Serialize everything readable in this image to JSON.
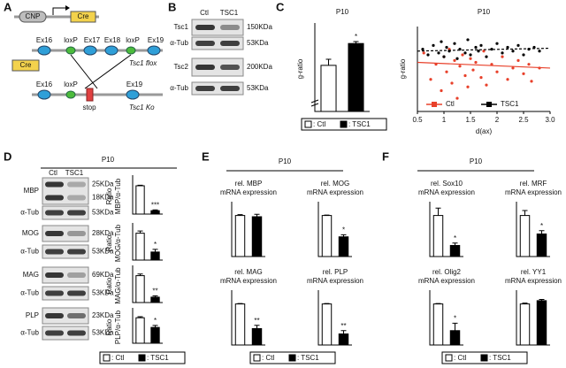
{
  "panel_labels": [
    "A",
    "B",
    "C",
    "D",
    "E",
    "F"
  ],
  "construct": {
    "promoter": "CNP",
    "cre": "Cre",
    "flox": {
      "exons": [
        "Ex16",
        "Ex17",
        "Ex18",
        "Ex19"
      ],
      "loxp": [
        "loxP",
        "loxP"
      ],
      "label": "Tsc1 flox"
    },
    "cre_box": "Cre",
    "ko": {
      "exons": [
        "Ex16",
        "Ex19"
      ],
      "loxp": "loxP",
      "stop": "stop",
      "label": "Tsc1 Ko"
    }
  },
  "blot_b": {
    "columns": [
      "Ctl",
      "TSC1"
    ],
    "rows": [
      {
        "protein": "Tsc1",
        "size": "150KDa"
      },
      {
        "protein": "α-Tub",
        "size": "53KDa"
      },
      {
        "protein": "Tsc2",
        "size": "200KDa"
      },
      {
        "protein": "α-Tub",
        "size": "53KDa"
      }
    ]
  },
  "blot_d": {
    "title": "P10",
    "columns": [
      "Ctl",
      "TSC1"
    ],
    "rows": [
      {
        "protein": "MBP",
        "sizes": [
          "25KDa",
          "18KDa"
        ]
      },
      {
        "protein": "α-Tub",
        "sizes": [
          "53KDa"
        ]
      },
      {
        "protein": "MOG",
        "sizes": [
          "28KDa"
        ]
      },
      {
        "protein": "α-Tub",
        "sizes": [
          "53KDa"
        ]
      },
      {
        "protein": "MAG",
        "sizes": [
          "69KDa"
        ]
      },
      {
        "protein": "α-Tub",
        "sizes": [
          "53KDa"
        ]
      },
      {
        "protein": "PLP",
        "sizes": [
          "23KDa"
        ]
      },
      {
        "protein": "α-Tub",
        "sizes": [
          "53KDa"
        ]
      }
    ]
  },
  "panel_titles": {
    "e": "P10",
    "f": "P10"
  },
  "legends": [
    {
      "items": [
        {
          "label": ": Ctl",
          "color": "#ffffff"
        },
        {
          "label": ": TSC1",
          "color": "#000000"
        }
      ]
    },
    {
      "items": [
        {
          "label": ": Ctl",
          "color": "#ffffff"
        },
        {
          "label": ": TSC1",
          "color": "#000000"
        }
      ]
    },
    {
      "items": [
        {
          "label": ": Ctl",
          "color": "#ffffff"
        },
        {
          "label": ": TSC1",
          "color": "#000000"
        }
      ]
    },
    {
      "items": [
        {
          "label": ": Ctl",
          "color": "#ffffff"
        },
        {
          "label": ": TSC1",
          "color": "#000000"
        }
      ]
    }
  ],
  "chart_data": [
    {
      "type": "bar",
      "title": [
        "P10"
      ],
      "ylabel": [
        "g-ratio"
      ],
      "values": [
        0.79,
        0.88
      ],
      "errors": [
        0.025,
        0.008
      ],
      "colors": [
        "#ffffff",
        "#000000"
      ],
      "ylim": [
        0.6,
        0.95
      ],
      "significance": "*"
    },
    {
      "type": "scatter",
      "title": [
        "P10"
      ],
      "ylabel": [
        "g-ratio"
      ],
      "xlabel": "d(ax)",
      "xlim": [
        0.5,
        3.0
      ],
      "ylim": [
        0.55,
        1.0
      ],
      "xticks": [
        0.5,
        1,
        1.5,
        2,
        2.5,
        {
          "value": 3,
          "label": "3.0"
        }
      ],
      "series": [
        {
          "name": "Ctl",
          "color": "#e8402a",
          "x": [
            0.62,
            0.75,
            0.85,
            0.95,
            1.0,
            1.05,
            1.1,
            1.15,
            1.2,
            1.25,
            1.3,
            1.35,
            1.4,
            1.45,
            1.5,
            1.55,
            1.6,
            1.7,
            1.75,
            1.8,
            1.9,
            2.0,
            2.1,
            2.2,
            2.3,
            2.4,
            2.5,
            2.6,
            2.65,
            2.8
          ],
          "values": [
            0.86,
            0.72,
            0.8,
            0.66,
            0.84,
            0.76,
            0.88,
            0.7,
            0.82,
            0.62,
            0.79,
            0.85,
            0.74,
            0.68,
            0.83,
            0.77,
            0.81,
            0.73,
            0.87,
            0.69,
            0.8,
            0.76,
            0.84,
            0.72,
            0.78,
            0.82,
            0.75,
            0.8,
            0.71,
            0.78
          ],
          "fit": {
            "x": [
              0.5,
              3.0
            ],
            "y": [
              0.81,
              0.78
            ]
          }
        },
        {
          "name": "TSC1",
          "color": "#000000",
          "x": [
            0.6,
            0.7,
            0.8,
            0.9,
            0.95,
            1.0,
            1.05,
            1.1,
            1.2,
            1.25,
            1.3,
            1.4,
            1.45,
            1.5,
            1.6,
            1.65,
            1.7,
            1.8,
            1.9,
            2.0,
            2.1,
            2.2,
            2.3,
            2.4,
            2.5,
            2.6,
            2.7,
            2.8
          ],
          "values": [
            0.88,
            0.85,
            0.9,
            0.86,
            0.92,
            0.84,
            0.89,
            0.87,
            0.91,
            0.83,
            0.88,
            0.86,
            0.93,
            0.85,
            0.89,
            0.87,
            0.9,
            0.84,
            0.88,
            0.91,
            0.86,
            0.89,
            0.87,
            0.9,
            0.85,
            0.88,
            0.89,
            0.87
          ],
          "fit": {
            "x": [
              0.5,
              3.0
            ],
            "y": [
              0.87,
              0.885
            ]
          }
        }
      ]
    },
    {
      "type": "bar",
      "ylabel": [
        "Ratio",
        "MBP/α-Tub"
      ],
      "values": [
        1.0,
        0.12
      ],
      "errors": [
        0.02,
        0.03
      ],
      "colors": [
        "#ffffff",
        "#000000"
      ],
      "ylim": [
        0,
        1.25
      ],
      "significance": "***"
    },
    {
      "type": "bar",
      "ylabel": [
        "Ratio",
        "MOG/α-Tub"
      ],
      "values": [
        1.0,
        0.3
      ],
      "errors": [
        0.08,
        0.1
      ],
      "colors": [
        "#ffffff",
        "#000000"
      ],
      "ylim": [
        0,
        1.25
      ],
      "significance": "*"
    },
    {
      "type": "bar",
      "ylabel": [
        "Ratio",
        "MAG/α-Tub"
      ],
      "values": [
        1.0,
        0.2
      ],
      "errors": [
        0.06,
        0.05
      ],
      "colors": [
        "#ffffff",
        "#000000"
      ],
      "ylim": [
        0,
        1.25
      ],
      "significance": "**"
    },
    {
      "type": "bar",
      "ylabel": [
        "Ratio",
        "PLP/α-Tub"
      ],
      "values": [
        1.0,
        0.62
      ],
      "errors": [
        0.04,
        0.08
      ],
      "colors": [
        "#ffffff",
        "#000000"
      ],
      "ylim": [
        0,
        1.25
      ],
      "significance": "*"
    },
    {
      "type": "bar",
      "title": [
        "rel. MBP",
        "mRNA expression"
      ],
      "values": [
        1.0,
        0.97
      ],
      "errors": [
        0.02,
        0.06
      ],
      "colors": [
        "#ffffff",
        "#000000"
      ],
      "ylim": [
        0,
        1.25
      ]
    },
    {
      "type": "bar",
      "title": [
        "rel. MOG",
        "mRNA expression"
      ],
      "values": [
        1.0,
        0.48
      ],
      "errors": [
        0.01,
        0.05
      ],
      "colors": [
        "#ffffff",
        "#000000"
      ],
      "ylim": [
        0,
        1.25
      ],
      "significance": "*"
    },
    {
      "type": "bar",
      "title": [
        "rel. MAG",
        "mRNA expression"
      ],
      "values": [
        1.0,
        0.4
      ],
      "errors": [
        0.01,
        0.08
      ],
      "colors": [
        "#ffffff",
        "#000000"
      ],
      "ylim": [
        0,
        1.25
      ],
      "significance": "**"
    },
    {
      "type": "bar",
      "title": [
        "rel. PLP",
        "mRNA expression"
      ],
      "values": [
        1.0,
        0.27
      ],
      "errors": [
        0.01,
        0.08
      ],
      "colors": [
        "#ffffff",
        "#000000"
      ],
      "ylim": [
        0,
        1.25
      ],
      "significance": "**"
    },
    {
      "type": "bar",
      "title": [
        "rel. Sox10",
        "mRNA expression"
      ],
      "values": [
        1.0,
        0.27
      ],
      "errors": [
        0.18,
        0.06
      ],
      "colors": [
        "#ffffff",
        "#000000"
      ],
      "ylim": [
        0,
        1.25
      ],
      "significance": "*"
    },
    {
      "type": "bar",
      "title": [
        "rel. MRF",
        "mRNA expression"
      ],
      "values": [
        1.0,
        0.55
      ],
      "errors": [
        0.12,
        0.08
      ],
      "colors": [
        "#ffffff",
        "#000000"
      ],
      "ylim": [
        0,
        1.25
      ],
      "significance": "*"
    },
    {
      "type": "bar",
      "title": [
        "rel. Olig2",
        "mRNA expression"
      ],
      "values": [
        1.0,
        0.35
      ],
      "errors": [
        0.01,
        0.18
      ],
      "colors": [
        "#ffffff",
        "#000000"
      ],
      "ylim": [
        0,
        1.25
      ],
      "significance": "*"
    },
    {
      "type": "bar",
      "title": [
        "rel. YY1",
        "mRNA expression"
      ],
      "values": [
        1.0,
        1.08
      ],
      "errors": [
        0.02,
        0.03
      ],
      "colors": [
        "#ffffff",
        "#000000"
      ],
      "ylim": [
        0,
        1.25
      ]
    }
  ]
}
